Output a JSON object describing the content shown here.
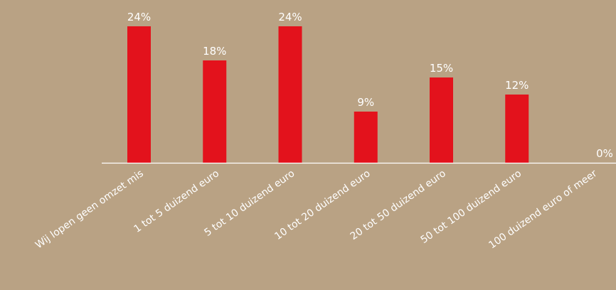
{
  "chart_data": {
    "type": "bar",
    "categories": [
      "Wij lopen geen omzet mis",
      "1 tot 5 duizend euro",
      "5 tot 10 duizend euro",
      "10 tot 20 duizend euro",
      "20 tot 50 duizend euro",
      "50 tot 100 duizend euro",
      "100 duizend euro of meer"
    ],
    "values": [
      24,
      18,
      24,
      9,
      15,
      12,
      0
    ],
    "value_labels": [
      "24%",
      "18%",
      "24%",
      "9%",
      "15%",
      "12%",
      "0%"
    ],
    "title": "",
    "xlabel": "",
    "ylabel": "",
    "ylim": [
      0,
      24
    ],
    "grid": false,
    "legend": "none",
    "colors": {
      "background": "#b9a284",
      "bar": "#e3121c",
      "baseline": "#ffffff",
      "text": "#ffffff"
    }
  }
}
